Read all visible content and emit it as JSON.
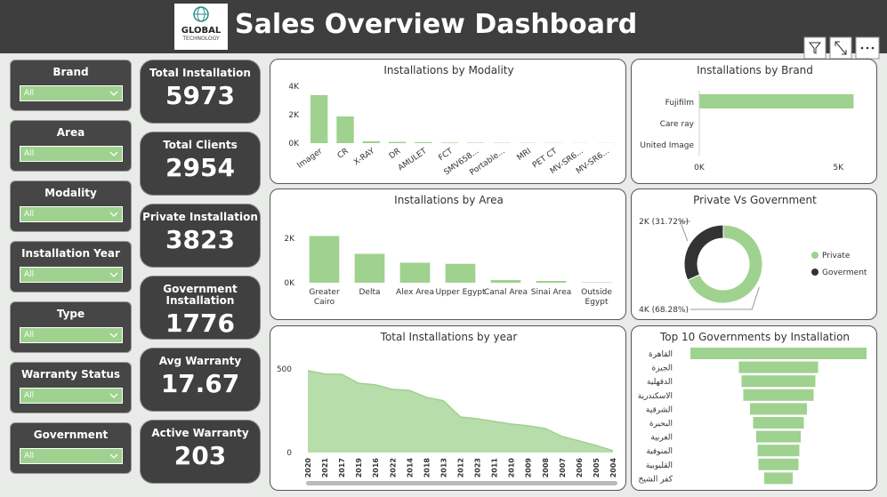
{
  "header": {
    "logo": [
      "GLOBAL",
      "TECHNOLOGY"
    ],
    "title": "Sales Overview Dashboard"
  },
  "filters": [
    {
      "label": "Brand",
      "value": "All"
    },
    {
      "label": "Area",
      "value": "All"
    },
    {
      "label": "Modality",
      "value": "All"
    },
    {
      "label": "Installation Year",
      "value": "All"
    },
    {
      "label": "Type",
      "value": "All"
    },
    {
      "label": "Warranty Status",
      "value": "All"
    },
    {
      "label": "Government",
      "value": "All"
    }
  ],
  "kpis": [
    {
      "label": "Total Installation",
      "value": 5973
    },
    {
      "label": "Total Clients",
      "value": 2954
    },
    {
      "label": "Private Installation",
      "value": 3823
    },
    {
      "label": "Government Installation",
      "value": 1776
    },
    {
      "label": "Avg Warranty",
      "value": 17.67
    },
    {
      "label": "Active Warranty",
      "value": 203
    }
  ],
  "chart_data": [
    {
      "type": "bar",
      "title": "Installations by Modality",
      "categories": [
        "Imager",
        "CR",
        "X-RAY",
        "DR",
        "AMULET",
        "FCT",
        "SMV658...",
        "Portable...",
        "MRI",
        "PET CT",
        "MV-SR6...",
        "MV-SR6..."
      ],
      "values": [
        3380,
        1880,
        130,
        90,
        70,
        40,
        30,
        25,
        20,
        15,
        10,
        10
      ],
      "color": "#9fd18f",
      "ylim": [
        0,
        4000
      ],
      "yticks": [
        {
          "value": 0,
          "label": "0K"
        },
        {
          "value": 2000,
          "label": "2K"
        },
        {
          "value": 4000,
          "label": "4K"
        }
      ]
    },
    {
      "type": "hbar",
      "title": "Installations by Brand",
      "categories": [
        "Fujifilm",
        "Care ray",
        "United Image"
      ],
      "values": [
        5550,
        15,
        10
      ],
      "color": "#9fd18f",
      "xlim": [
        0,
        5600
      ],
      "xticks": [
        {
          "value": 0,
          "label": "0K"
        },
        {
          "value": 5000,
          "label": "5K"
        }
      ]
    },
    {
      "type": "bar",
      "title": "Installations by Area",
      "categories": [
        "Greater Cairo",
        "Delta",
        "Alex Area",
        "Upper Egypt",
        "Canal Area",
        "Sinai Area",
        "Outside Egypt"
      ],
      "values": [
        2100,
        1300,
        900,
        850,
        120,
        80,
        20
      ],
      "color": "#9fd18f",
      "ylim": [
        0,
        2400
      ],
      "yticks": [
        {
          "value": 0,
          "label": "0K"
        },
        {
          "value": 2000,
          "label": "2K"
        }
      ]
    },
    {
      "type": "donut",
      "title": "Private Vs Government",
      "categories": [
        "Private",
        "Goverment"
      ],
      "values": [
        3823,
        1776
      ],
      "value_labels": [
        "4K (68.28%)",
        "2K (31.72%)"
      ],
      "colors": [
        "#9fd18f",
        "#333333"
      ]
    },
    {
      "type": "area",
      "title": "Total Installations by year",
      "categories": [
        "2020",
        "2021",
        "2017",
        "2019",
        "2016",
        "2022",
        "2014",
        "2018",
        "2013",
        "2012",
        "2023",
        "2011",
        "2010",
        "2009",
        "2008",
        "2007",
        "2006",
        "2005",
        "2004"
      ],
      "values": [
        490,
        470,
        468,
        415,
        405,
        378,
        372,
        330,
        310,
        213,
        202,
        186,
        170,
        160,
        144,
        96,
        70,
        43,
        11
      ],
      "color": "#9fd18f",
      "ylim": [
        0,
        500
      ],
      "yticks": [
        0,
        500
      ]
    },
    {
      "type": "funnel",
      "title": "Top 10 Governments by Installation",
      "categories": [
        "القاهرة",
        "الجيزة",
        "الدقهلية",
        "الاسكندرية",
        "الشرقية",
        "البحيرة",
        "الغربية",
        "المنوفية",
        "القليوبية",
        "كفر الشيخ"
      ],
      "values": [
        1400,
        630,
        587,
        559,
        453,
        403,
        354,
        332,
        318,
        226
      ],
      "color": "#9fd18f"
    }
  ]
}
